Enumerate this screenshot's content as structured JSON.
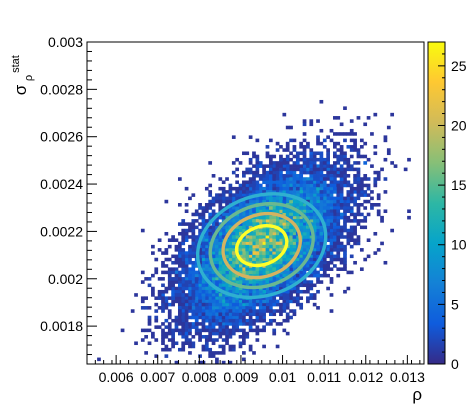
{
  "chart_data": {
    "type": "heatmap",
    "xlabel": "ρ",
    "ylabel_main": "σ",
    "ylabel_sup": "stat",
    "ylabel_sub": "ρ",
    "xlim": [
      0.0053,
      0.0134
    ],
    "ylim": [
      0.00164,
      0.003
    ],
    "x_ticks": [
      {
        "value": 0.006,
        "label": "0.006"
      },
      {
        "value": 0.007,
        "label": "0.007"
      },
      {
        "value": 0.008,
        "label": "0.008"
      },
      {
        "value": 0.009,
        "label": "0.009"
      },
      {
        "value": 0.01,
        "label": "0.01"
      },
      {
        "value": 0.011,
        "label": "0.011"
      },
      {
        "value": 0.012,
        "label": "0.012"
      },
      {
        "value": 0.013,
        "label": "0.013"
      }
    ],
    "y_ticks": [
      {
        "value": 0.0018,
        "label": "0.0018"
      },
      {
        "value": 0.002,
        "label": "0.002"
      },
      {
        "value": 0.0022,
        "label": "0.0022"
      },
      {
        "value": 0.0024,
        "label": "0.0024"
      },
      {
        "value": 0.0026,
        "label": "0.0026"
      },
      {
        "value": 0.0028,
        "label": "0.0028"
      },
      {
        "value": 0.003,
        "label": "0.003"
      }
    ],
    "colorbar": {
      "range": [
        0,
        27
      ],
      "ticks": [
        {
          "value": 0,
          "label": "0"
        },
        {
          "value": 5,
          "label": "5"
        },
        {
          "value": 10,
          "label": "10"
        },
        {
          "value": 15,
          "label": "15"
        },
        {
          "value": 20,
          "label": "20"
        },
        {
          "value": 25,
          "label": "25"
        }
      ]
    },
    "distribution": {
      "mean": [
        0.0095,
        0.00214
      ],
      "sigma": [
        0.00095,
        0.00016
      ],
      "correlation": 0.55,
      "peak_count": 26,
      "entries": 15000
    },
    "contours": [
      {
        "rx": 0.00062,
        "ry": 8e-05,
        "color": "#ffff29"
      },
      {
        "rx": 0.00095,
        "ry": 0.00013,
        "color": "#d4b361"
      },
      {
        "rx": 0.00127,
        "ry": 0.00017,
        "color": "#6ab891"
      },
      {
        "rx": 0.00158,
        "ry": 0.00021,
        "color": "#2fb0d0"
      }
    ],
    "palette": [
      "#352a87",
      "#0f5cdd",
      "#1481d6",
      "#06a4ca",
      "#2eb7a4",
      "#87bf77",
      "#d1bb59",
      "#fec832",
      "#f9fb0e"
    ]
  }
}
